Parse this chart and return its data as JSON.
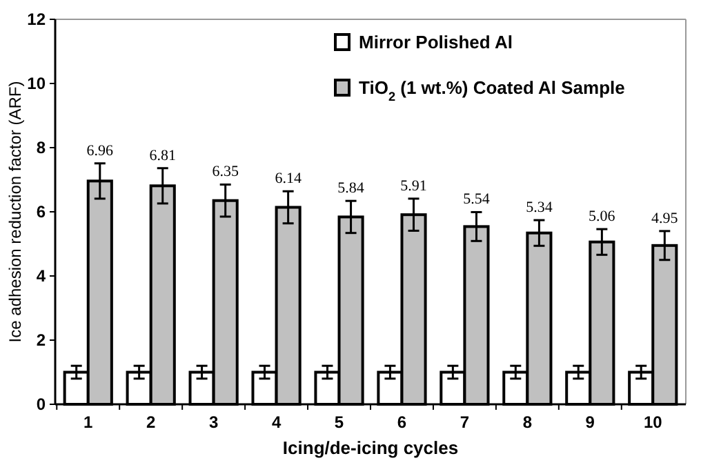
{
  "chart_data": {
    "type": "bar",
    "xlabel": "Icing/de-icing cycles",
    "ylabel": "Ice adhesion reduction factor (ARF)",
    "categories": [
      "1",
      "2",
      "3",
      "4",
      "5",
      "6",
      "7",
      "8",
      "9",
      "10"
    ],
    "series": [
      {
        "name": "Mirror Polished Al",
        "color": "#ffffff",
        "values": [
          1,
          1,
          1,
          1,
          1,
          1,
          1,
          1,
          1,
          1
        ],
        "errors": [
          0.2,
          0.2,
          0.2,
          0.2,
          0.2,
          0.2,
          0.2,
          0.2,
          0.2,
          0.2
        ]
      },
      {
        "name": "TiO$_{2}$ (1 wt.%) Coated Al Sample",
        "color": "#c0c0c0",
        "values": [
          6.96,
          6.81,
          6.35,
          6.14,
          5.84,
          5.91,
          5.54,
          5.34,
          5.06,
          4.95
        ],
        "errors": [
          0.55,
          0.55,
          0.5,
          0.5,
          0.5,
          0.5,
          0.45,
          0.4,
          0.4,
          0.45
        ],
        "value_labels": [
          "6.96",
          "6.81",
          "6.35",
          "6.14",
          "5.84",
          "5.91",
          "5.54",
          "5.34",
          "5.06",
          "4.95"
        ]
      }
    ],
    "ylim": [
      0,
      12
    ],
    "yticks": [
      0,
      2,
      4,
      6,
      8,
      10,
      12
    ],
    "legend": "top right",
    "grid": false
  }
}
